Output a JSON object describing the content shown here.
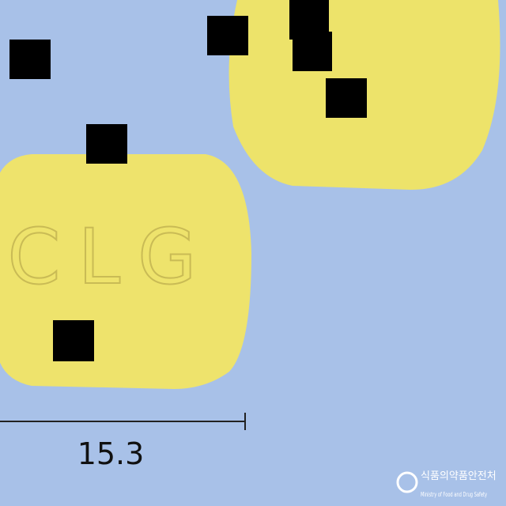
{
  "pill": {
    "imprint": "CLG"
  },
  "scale": {
    "label": "15.3"
  },
  "watermark": {
    "korean": "식품의약품안전처",
    "english": "Ministry of Food and Drug Safety"
  }
}
